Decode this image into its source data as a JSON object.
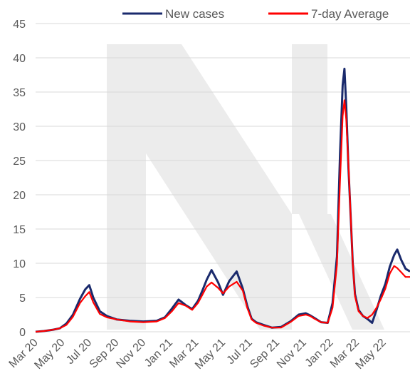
{
  "chart_data": {
    "type": "line",
    "title": "",
    "xlabel": "",
    "ylabel": "",
    "ylim": [
      0,
      45
    ],
    "yticks": [
      0,
      5,
      10,
      15,
      20,
      25,
      30,
      35,
      40,
      45
    ],
    "xlim": [
      "2020-03-01",
      "2022-06-30"
    ],
    "x_tick_labels": [
      "Mar 20",
      "May 20",
      "Jul 20",
      "Sep 20",
      "Nov 20",
      "Jan 21",
      "Mar 21",
      "May 21",
      "Jul 21",
      "Sep 21",
      "Nov 21",
      "Jan 22",
      "Mar 22",
      "May 22"
    ],
    "x_tick_dates": [
      "2020-03-01",
      "2020-05-01",
      "2020-07-01",
      "2020-09-01",
      "2020-11-01",
      "2021-01-01",
      "2021-03-01",
      "2021-05-01",
      "2021-07-01",
      "2021-09-01",
      "2021-11-01",
      "2022-01-01",
      "2022-03-01",
      "2022-05-01"
    ],
    "grid": {
      "horizontal": true,
      "vertical": false
    },
    "legend_position": "top-right",
    "series": [
      {
        "name": "New cases",
        "color": "#1a2a6c",
        "x": [
          "2020-03-01",
          "2020-03-20",
          "2020-04-10",
          "2020-04-25",
          "2020-05-10",
          "2020-05-25",
          "2020-06-10",
          "2020-06-22",
          "2020-07-01",
          "2020-07-10",
          "2020-07-25",
          "2020-08-10",
          "2020-09-01",
          "2020-10-01",
          "2020-11-01",
          "2020-12-01",
          "2020-12-20",
          "2021-01-05",
          "2021-01-20",
          "2021-02-05",
          "2021-02-20",
          "2021-03-05",
          "2021-03-15",
          "2021-03-25",
          "2021-04-05",
          "2021-04-20",
          "2021-05-01",
          "2021-05-15",
          "2021-06-01",
          "2021-06-15",
          "2021-06-25",
          "2021-07-05",
          "2021-07-15",
          "2021-08-01",
          "2021-08-20",
          "2021-09-10",
          "2021-10-01",
          "2021-10-20",
          "2021-11-05",
          "2021-11-15",
          "2021-11-25",
          "2021-12-10",
          "2021-12-25",
          "2022-01-05",
          "2022-01-15",
          "2022-01-22",
          "2022-01-28",
          "2022-02-01",
          "2022-02-05",
          "2022-02-10",
          "2022-02-15",
          "2022-02-20",
          "2022-02-25",
          "2022-03-05",
          "2022-03-15",
          "2022-03-25",
          "2022-04-05",
          "2022-04-15",
          "2022-04-25",
          "2022-05-05",
          "2022-05-15",
          "2022-05-25",
          "2022-06-01",
          "2022-06-10",
          "2022-06-20",
          "2022-06-30"
        ],
        "values": [
          0.0,
          0.1,
          0.3,
          0.5,
          1.2,
          2.5,
          4.8,
          6.2,
          6.8,
          5.0,
          3.0,
          2.3,
          1.8,
          1.6,
          1.5,
          1.6,
          2.1,
          3.4,
          4.7,
          3.9,
          3.3,
          4.5,
          6.0,
          7.6,
          9.0,
          7.2,
          5.4,
          7.4,
          8.8,
          6.3,
          3.8,
          1.9,
          1.4,
          1.0,
          0.6,
          0.7,
          1.5,
          2.5,
          2.7,
          2.4,
          2.0,
          1.4,
          1.3,
          4.2,
          11.0,
          26.0,
          36.0,
          38.4,
          33.0,
          24.0,
          17.0,
          10.0,
          5.5,
          3.2,
          2.3,
          1.9,
          1.3,
          3.2,
          5.3,
          7.0,
          9.5,
          11.2,
          12.0,
          10.5,
          9.2,
          8.8
        ]
      },
      {
        "name": "7-day Average",
        "color": "#ff0000",
        "x": [
          "2020-03-01",
          "2020-03-20",
          "2020-04-10",
          "2020-04-25",
          "2020-05-10",
          "2020-05-25",
          "2020-06-10",
          "2020-06-22",
          "2020-07-01",
          "2020-07-10",
          "2020-07-25",
          "2020-08-10",
          "2020-09-01",
          "2020-10-01",
          "2020-11-01",
          "2020-12-01",
          "2020-12-20",
          "2021-01-05",
          "2021-01-20",
          "2021-02-05",
          "2021-02-20",
          "2021-03-05",
          "2021-03-15",
          "2021-03-25",
          "2021-04-05",
          "2021-04-20",
          "2021-05-01",
          "2021-05-15",
          "2021-06-01",
          "2021-06-15",
          "2021-06-25",
          "2021-07-05",
          "2021-07-15",
          "2021-08-01",
          "2021-08-20",
          "2021-09-10",
          "2021-10-01",
          "2021-10-20",
          "2021-11-05",
          "2021-11-15",
          "2021-11-25",
          "2021-12-10",
          "2021-12-25",
          "2022-01-05",
          "2022-01-15",
          "2022-01-22",
          "2022-01-28",
          "2022-02-01",
          "2022-02-05",
          "2022-02-10",
          "2022-02-15",
          "2022-02-20",
          "2022-02-25",
          "2022-03-05",
          "2022-03-15",
          "2022-03-25",
          "2022-04-05",
          "2022-04-15",
          "2022-04-25",
          "2022-05-05",
          "2022-05-15",
          "2022-05-25",
          "2022-06-01",
          "2022-06-10",
          "2022-06-20",
          "2022-06-30"
        ],
        "values": [
          0.0,
          0.1,
          0.3,
          0.5,
          1.0,
          2.2,
          4.2,
          5.2,
          5.8,
          4.3,
          2.6,
          2.1,
          1.8,
          1.5,
          1.4,
          1.5,
          2.0,
          3.0,
          4.2,
          3.8,
          3.2,
          4.2,
          5.4,
          6.6,
          7.2,
          6.4,
          5.6,
          6.6,
          7.3,
          6.0,
          3.5,
          1.8,
          1.3,
          0.9,
          0.6,
          0.6,
          1.4,
          2.3,
          2.5,
          2.3,
          1.9,
          1.4,
          1.3,
          3.5,
          9.8,
          22.0,
          31.5,
          33.8,
          31.0,
          24.5,
          17.0,
          10.0,
          5.2,
          3.0,
          2.3,
          2.0,
          2.5,
          3.5,
          4.8,
          6.3,
          8.5,
          9.6,
          9.3,
          8.7,
          8.0,
          8.0
        ]
      }
    ]
  }
}
